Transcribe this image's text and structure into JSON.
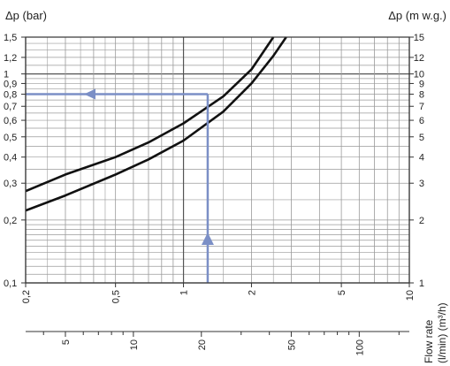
{
  "chart_data": {
    "type": "line",
    "title": "",
    "y_left_label": "Δp (bar)",
    "y_right_label": "Δp (m w.g.)",
    "x_label_lines": [
      "Flow rate",
      "(l/min)  (m³/h)"
    ],
    "y_scale": "log",
    "x_scale": "log",
    "y_left_range": [
      0.1,
      1.5
    ],
    "y_right_range": [
      1,
      15
    ],
    "x_top_range_m3h": [
      0.2,
      10
    ],
    "x_bottom_range_lmin": [
      3.333,
      166.67
    ],
    "y_left_ticks": [
      {
        "value": 0.1,
        "label": "0,1"
      },
      {
        "value": 0.2,
        "label": "0,2"
      },
      {
        "value": 0.3,
        "label": "0,3"
      },
      {
        "value": 0.4,
        "label": "0,4"
      },
      {
        "value": 0.5,
        "label": "0,5"
      },
      {
        "value": 0.6,
        "label": "0,6"
      },
      {
        "value": 0.7,
        "label": "0,7"
      },
      {
        "value": 0.8,
        "label": "0,8"
      },
      {
        "value": 0.9,
        "label": "0,9"
      },
      {
        "value": 1.0,
        "label": "1"
      },
      {
        "value": 1.2,
        "label": "1,2"
      },
      {
        "value": 1.5,
        "label": "1,5"
      }
    ],
    "y_right_ticks": [
      {
        "value": 1,
        "label": "1"
      },
      {
        "value": 2,
        "label": "2"
      },
      {
        "value": 3,
        "label": "3"
      },
      {
        "value": 4,
        "label": "4"
      },
      {
        "value": 5,
        "label": "5"
      },
      {
        "value": 6,
        "label": "6"
      },
      {
        "value": 7,
        "label": "7"
      },
      {
        "value": 8,
        "label": "8"
      },
      {
        "value": 9,
        "label": "9"
      },
      {
        "value": 10,
        "label": "10"
      },
      {
        "value": 12,
        "label": "12"
      },
      {
        "value": 15,
        "label": "15"
      }
    ],
    "x_top_ticks": [
      {
        "value": 0.2,
        "label": "0,2"
      },
      {
        "value": 0.5,
        "label": "0,5"
      },
      {
        "value": 1,
        "label": "1"
      },
      {
        "value": 2,
        "label": "2"
      },
      {
        "value": 5,
        "label": "5"
      },
      {
        "value": 10,
        "label": "10"
      }
    ],
    "x_bottom_ticks": [
      {
        "value": 5,
        "label": "5"
      },
      {
        "value": 10,
        "label": "10"
      },
      {
        "value": 20,
        "label": "20"
      },
      {
        "value": 50,
        "label": "50"
      },
      {
        "value": 100,
        "label": "100"
      }
    ],
    "series": [
      {
        "points": [
          [
            0.2,
            0.275
          ],
          [
            0.3,
            0.33
          ],
          [
            0.5,
            0.4
          ],
          [
            0.7,
            0.47
          ],
          [
            1.0,
            0.58
          ],
          [
            1.5,
            0.78
          ],
          [
            2.0,
            1.05
          ],
          [
            2.5,
            1.5
          ]
        ]
      },
      {
        "points": [
          [
            0.2,
            0.222
          ],
          [
            0.3,
            0.262
          ],
          [
            0.5,
            0.33
          ],
          [
            0.7,
            0.39
          ],
          [
            1.0,
            0.48
          ],
          [
            1.5,
            0.66
          ],
          [
            2.0,
            0.9
          ],
          [
            2.5,
            1.22
          ],
          [
            2.85,
            1.5
          ]
        ]
      }
    ],
    "reading_example": {
      "flow_m3h": 1.28,
      "dp_bar": 0.8
    },
    "colors": {
      "grid": "#9a9a9a",
      "curve": "#111111",
      "example": "#7b8fc6",
      "frame": "#333333"
    }
  }
}
